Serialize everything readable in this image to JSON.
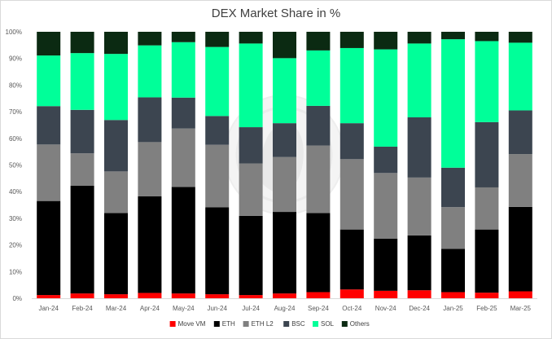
{
  "chart_data": {
    "type": "bar",
    "stacked": true,
    "title": "DEX Market Share in %",
    "xlabel": "",
    "ylabel": "",
    "ylim": [
      0,
      100
    ],
    "y_ticks": [
      "0%",
      "10%",
      "20%",
      "30%",
      "40%",
      "50%",
      "60%",
      "70%",
      "80%",
      "90%",
      "100%"
    ],
    "grid": false,
    "legend_position": "bottom",
    "categories": [
      "Jan-24",
      "Feb-24",
      "Mar-24",
      "Apr-24",
      "May-24",
      "Jun-24",
      "Jul-24",
      "Aug-24",
      "Sep-24",
      "Oct-24",
      "Nov-24",
      "Dec-24",
      "Jan-25",
      "Feb-25",
      "Mar-25"
    ],
    "series": [
      {
        "name": "Move VM",
        "color": "#ff0000",
        "values": [
          1.2,
          1.8,
          1.5,
          2.0,
          1.8,
          1.5,
          1.2,
          1.8,
          2.3,
          3.3,
          2.8,
          3.0,
          2.3,
          2.1,
          2.6
        ]
      },
      {
        "name": "ETH",
        "color": "#000000",
        "values": [
          35.3,
          40.4,
          30.5,
          36.3,
          40.0,
          32.6,
          29.7,
          30.6,
          29.7,
          22.5,
          19.6,
          20.6,
          16.2,
          23.7,
          31.7
        ]
      },
      {
        "name": "ETH L2",
        "color": "#808080",
        "values": [
          21.2,
          12.2,
          15.6,
          20.3,
          21.9,
          23.5,
          19.7,
          20.6,
          25.3,
          26.4,
          24.6,
          21.7,
          15.7,
          15.8,
          19.8
        ]
      },
      {
        "name": "BSC",
        "color": "#3c4550",
        "values": [
          14.4,
          16.3,
          19.3,
          16.8,
          11.6,
          10.8,
          13.6,
          12.7,
          14.9,
          13.5,
          9.9,
          22.6,
          14.8,
          24.5,
          16.4
        ]
      },
      {
        "name": "SOL",
        "color": "#00ff99",
        "values": [
          19.0,
          21.3,
          24.8,
          19.5,
          20.8,
          25.9,
          31.4,
          24.4,
          20.8,
          28.2,
          36.5,
          27.7,
          48.2,
          30.4,
          25.4
        ]
      },
      {
        "name": "Others",
        "color": "#0b2a12",
        "values": [
          8.9,
          8.0,
          8.3,
          5.1,
          3.9,
          5.7,
          4.4,
          9.9,
          7.0,
          6.1,
          6.6,
          4.4,
          2.8,
          3.5,
          4.1
        ]
      }
    ]
  }
}
